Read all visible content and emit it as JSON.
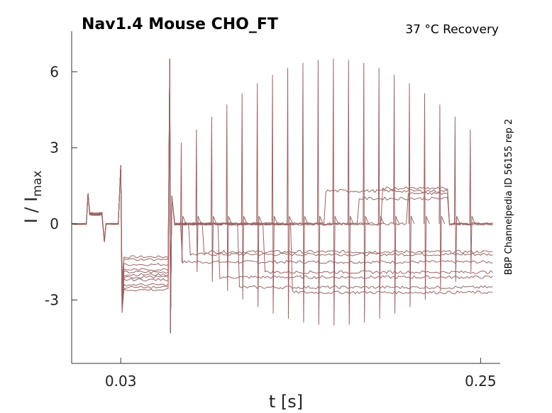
{
  "chart_data": {
    "type": "line",
    "title": "Nav1.4  Mouse  CHO_FT",
    "subtitle": "37 °C  Recovery",
    "side_note": "BBP Channelpedia ID 56155 rep 2",
    "xlabel": "t [s]",
    "ylabel_main": "I / I",
    "ylabel_sub": "max",
    "xlim": [
      0.0,
      0.262
    ],
    "ylim": [
      -5.5,
      7.6
    ],
    "x_ticks": [
      0.03,
      0.25
    ],
    "x_tick_labels": [
      "0.03",
      "0.25"
    ],
    "y_ticks": [
      -3,
      0,
      3,
      6
    ],
    "y_tick_labels": [
      "-3",
      "0",
      "3",
      "6"
    ],
    "line_color": "#9a6464",
    "protocol": {
      "baseline_end": 0.01,
      "prepulse": [
        0.01,
        0.02
      ],
      "prepulse_level": 0.4,
      "conditioning": [
        0.03,
        0.06
      ],
      "conditioning_spike": 2.3,
      "test_spike": 6.5,
      "test_min": -4.3,
      "test_settle": 0.3,
      "sweep_spike_min": 3.2,
      "sweep_spike_max": 6.5
    },
    "sweeps": [
      {
        "hold": -1.3,
        "recovery_t": 0.067,
        "post": -1.5
      },
      {
        "hold": -1.6,
        "recovery_t": 0.072,
        "post": -1.2
      },
      {
        "hold": -1.9,
        "recovery_t": 0.08,
        "post": -1.1
      },
      {
        "hold": -2.0,
        "recovery_t": 0.09,
        "post": -2.1
      },
      {
        "hold": -2.2,
        "recovery_t": 0.102,
        "post": -2.5
      },
      {
        "hold": -2.4,
        "recovery_t": 0.118,
        "post": -1.9
      },
      {
        "hold": -2.6,
        "recovery_t": 0.135,
        "post": -2.7
      },
      {
        "hold": -1.4,
        "recovery_t": 0.155,
        "post": 1.3
      },
      {
        "hold": -1.8,
        "recovery_t": 0.175,
        "post": 1.0
      },
      {
        "hold": -2.1,
        "recovery_t": 0.19,
        "post": 1.4
      },
      {
        "hold": -2.5,
        "recovery_t": 0.205,
        "post": 1.2
      }
    ]
  }
}
